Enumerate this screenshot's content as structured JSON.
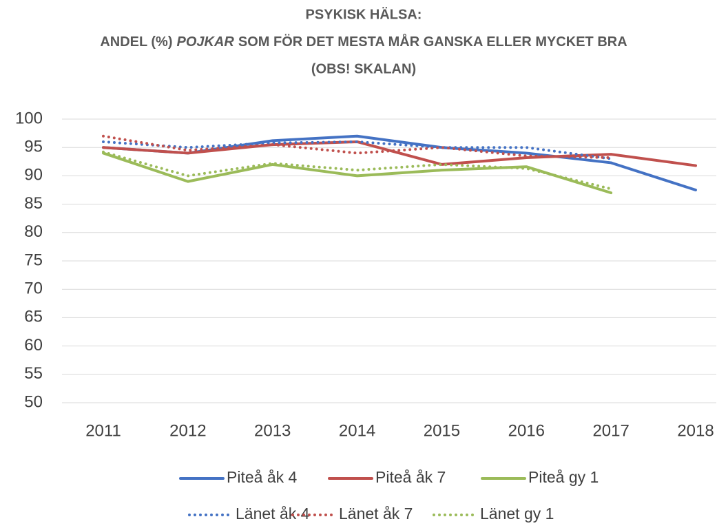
{
  "chart_data": {
    "type": "line",
    "title": [
      "PSYKISK HÄLSA:",
      [
        "ANDEL (%)",
        "POJKAR",
        "SOM FÖR DET MESTA MÅR GANSKA ELLER MYCKET BRA"
      ],
      "(OBS! SKALAN)"
    ],
    "categories": [
      "2011",
      "2012",
      "2013",
      "2014",
      "2015",
      "2016",
      "2017",
      "2018"
    ],
    "series": [
      {
        "name": "Piteå åk 4",
        "color": "#4472c4",
        "line_style": "solid",
        "values": [
          95,
          94,
          96.2,
          97,
          95,
          94,
          92.3,
          87.5
        ]
      },
      {
        "name": "Piteå åk 7",
        "color": "#c0504d",
        "line_style": "solid",
        "values": [
          95,
          94,
          95.5,
          96,
          92,
          93.2,
          93.8,
          91.8
        ]
      },
      {
        "name": "Piteå gy 1",
        "color": "#9bbb59",
        "line_style": "solid",
        "values": [
          94,
          89,
          92,
          90,
          91,
          91.6,
          87,
          null
        ]
      },
      {
        "name": "Länet åk 4",
        "color": "#4472c4",
        "line_style": "dotted",
        "values": [
          96,
          95,
          95.8,
          96,
          95,
          95,
          93,
          null
        ]
      },
      {
        "name": "Länet åk 7",
        "color": "#c0504d",
        "line_style": "dotted",
        "values": [
          97,
          94.5,
          95.5,
          94,
          95,
          93.5,
          93.2,
          null
        ]
      },
      {
        "name": "Länet gy 1",
        "color": "#9bbb59",
        "line_style": "dotted",
        "values": [
          94.2,
          90,
          92.2,
          91,
          92,
          91.3,
          87.7,
          null
        ]
      }
    ],
    "ylim": [
      50,
      100
    ],
    "yticks": [
      50,
      55,
      60,
      65,
      70,
      75,
      80,
      85,
      90,
      95,
      100
    ],
    "grid": true,
    "legend": "bottom"
  }
}
